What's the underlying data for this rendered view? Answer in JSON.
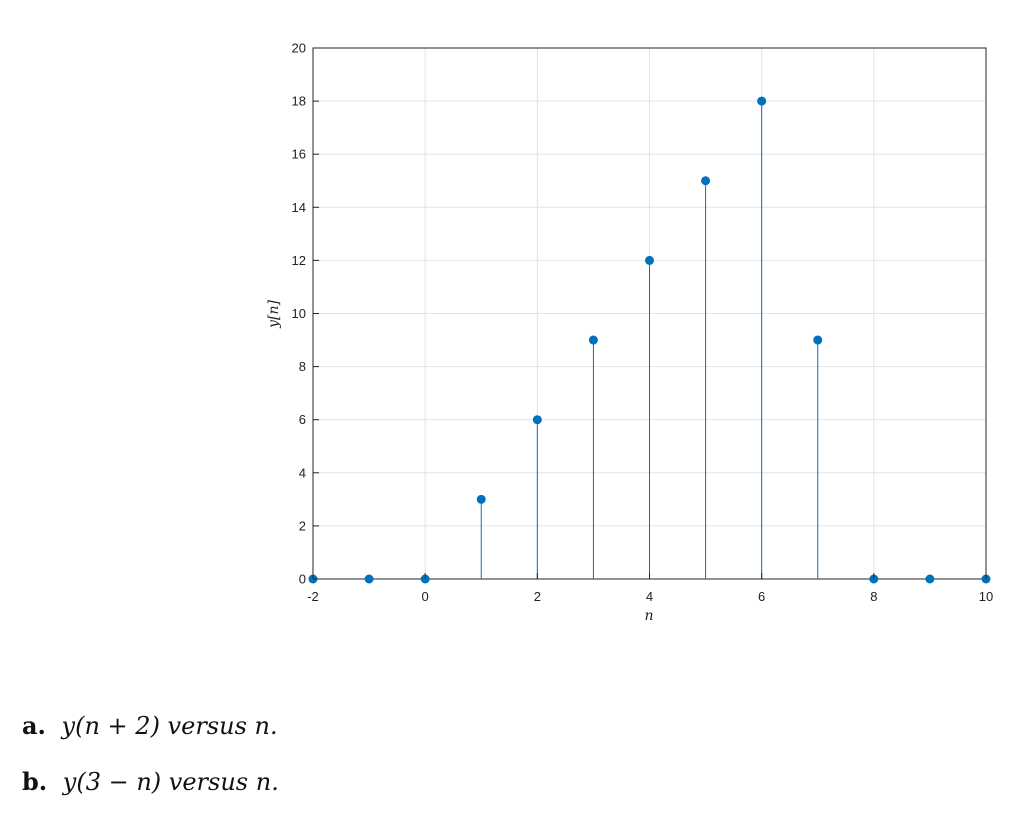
{
  "chart_data": {
    "type": "stem",
    "x": [
      -2,
      -1,
      0,
      1,
      2,
      3,
      4,
      5,
      6,
      7,
      8,
      9,
      10
    ],
    "y": [
      0,
      0,
      0,
      3,
      6,
      9,
      12,
      15,
      18,
      9,
      0,
      0,
      0
    ],
    "xlim": [
      -2,
      10
    ],
    "ylim": [
      0,
      20
    ],
    "xticks": [
      -2,
      0,
      2,
      4,
      6,
      8,
      10
    ],
    "yticks": [
      0,
      2,
      4,
      6,
      8,
      10,
      12,
      14,
      16,
      18,
      20
    ],
    "xlabel": "n",
    "ylabel": "y[n]",
    "grid": true,
    "color": "#0072BD"
  },
  "questions": [
    {
      "letter": "a.",
      "text": "y(n + 2) versus n."
    },
    {
      "letter": "b.",
      "text": "y(3 − n) versus n."
    }
  ]
}
